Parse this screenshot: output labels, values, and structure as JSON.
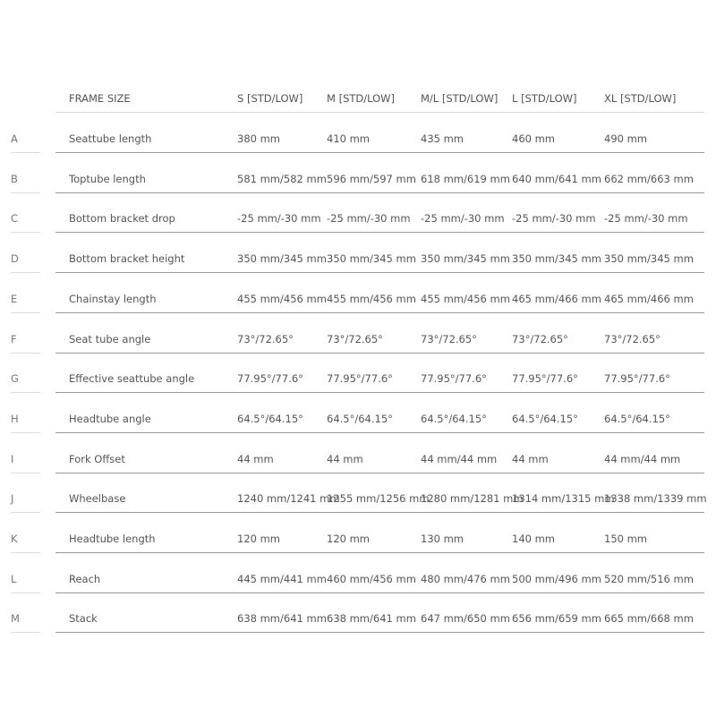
{
  "table": {
    "header": [
      "FRAME SIZE",
      "S [STD/LOW]",
      "M [STD/LOW]",
      "M/L [STD/LOW]",
      "L [STD/LOW]",
      "XL [STD/LOW]"
    ],
    "rows": [
      [
        "A",
        "Seattube length",
        "380 mm",
        "410 mm",
        "435 mm",
        "460 mm",
        "490 mm"
      ],
      [
        "B",
        "Toptube length",
        "581 mm/582 mm",
        "596 mm/597 mm",
        "618 mm/619 mm",
        "640 mm/641 mm",
        "662 mm/663 mm"
      ],
      [
        "C",
        "Bottom bracket drop",
        "-25 mm/-30 mm",
        "-25 mm/-30 mm",
        "-25 mm/-30 mm",
        "-25 mm/-30 mm",
        "-25 mm/-30 mm"
      ],
      [
        "D",
        "Bottom bracket height",
        "350 mm/345 mm",
        "350 mm/345 mm",
        "350 mm/345 mm",
        "350 mm/345 mm",
        "350 mm/345 mm"
      ],
      [
        "E",
        "Chainstay length",
        "455 mm/456 mm",
        "455 mm/456 mm",
        "455 mm/456 mm",
        "465 mm/466 mm",
        "465 mm/466 mm"
      ],
      [
        "F",
        "Seat tube angle",
        "73°/72.65°",
        "73°/72.65°",
        "73°/72.65°",
        "73°/72.65°",
        "73°/72.65°"
      ],
      [
        "G",
        "Effective seattube angle",
        "77.95°/77.6°",
        "77.95°/77.6°",
        "77.95°/77.6°",
        "77.95°/77.6°",
        "77.95°/77.6°"
      ],
      [
        "H",
        "Headtube angle",
        "64.5°/64.15°",
        "64.5°/64.15°",
        "64.5°/64.15°",
        "64.5°/64.15°",
        "64.5°/64.15°"
      ],
      [
        "I",
        "Fork Offset",
        "44 mm",
        "44 mm",
        "44 mm/44 mm",
        "44 mm",
        "44 mm/44 mm"
      ],
      [
        "J",
        "Wheelbase",
        "1240 mm/1241 mm",
        "1255 mm/1256 mm",
        "1280 mm/1281 mm",
        "1314 mm/1315 mm",
        "1338 mm/1339 mm"
      ],
      [
        "K",
        "Headtube length",
        "120 mm",
        "120 mm",
        "130 mm",
        "140 mm",
        "150 mm"
      ],
      [
        "L",
        "Reach",
        "445 mm/441 mm",
        "460 mm/456 mm",
        "480 mm/476 mm",
        "500 mm/496 mm",
        "520 mm/516 mm"
      ],
      [
        "M",
        "Stack",
        "638 mm/641 mm",
        "638 mm/641 mm",
        "647 mm/650 mm",
        "656 mm/659 mm",
        "665 mm/668 mm"
      ]
    ]
  }
}
